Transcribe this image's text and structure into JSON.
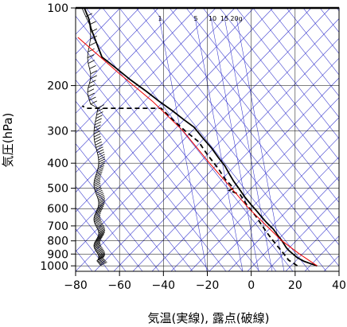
{
  "chart_data": {
    "type": "line",
    "title": "",
    "xlabel": "気温(実線), 露点(破線)",
    "ylabel": "気圧(hPa)",
    "x_ticks": [
      -80,
      -60,
      -40,
      -20,
      0,
      20,
      40
    ],
    "x_tick_labels": [
      "−80",
      "−60",
      "−40",
      "−20",
      "0",
      "20",
      "40"
    ],
    "xlim": [
      -80,
      40
    ],
    "y_ticks": [
      100,
      200,
      300,
      400,
      500,
      600,
      700,
      800,
      900,
      1000
    ],
    "y_tick_labels": [
      "100",
      "200",
      "300",
      "400",
      "500",
      "600",
      "700",
      "800",
      "900",
      "1000"
    ],
    "ylim": [
      1050,
      100
    ],
    "y_scale": "log",
    "mixing_ratio_labels": [
      "1",
      "5",
      "10",
      "15",
      "20g"
    ],
    "colors": {
      "temperature": "#000000",
      "dewpoint": "#000000",
      "reference": "#ee0000",
      "background_lines": "#3030cc",
      "grid": "#000000"
    },
    "series": [
      {
        "role": "temperature",
        "style": "solid",
        "points": [
          [
            30,
            1000
          ],
          [
            27,
            980
          ],
          [
            24,
            960
          ],
          [
            21,
            930
          ],
          [
            19,
            900
          ],
          [
            17,
            870
          ],
          [
            16,
            850
          ],
          [
            14,
            800
          ],
          [
            12,
            760
          ],
          [
            10,
            720
          ],
          [
            7,
            680
          ],
          [
            5,
            650
          ],
          [
            3,
            620
          ],
          [
            0,
            580
          ],
          [
            -3,
            540
          ],
          [
            -5,
            510
          ],
          [
            -8,
            470
          ],
          [
            -10,
            440
          ],
          [
            -12,
            410
          ],
          [
            -15,
            380
          ],
          [
            -18,
            350
          ],
          [
            -22,
            320
          ],
          [
            -26,
            290
          ],
          [
            -31,
            270
          ],
          [
            -36,
            250
          ],
          [
            -42,
            230
          ],
          [
            -48,
            210
          ],
          [
            -55,
            190
          ],
          [
            -62,
            170
          ],
          [
            -68,
            155
          ],
          [
            -70,
            140
          ],
          [
            -73,
            120
          ],
          [
            -74,
            110
          ],
          [
            -76,
            100
          ]
        ]
      },
      {
        "role": "dewpoint",
        "style": "dashed",
        "points": [
          [
            21,
            1000
          ],
          [
            17,
            950
          ],
          [
            14,
            880
          ],
          [
            11,
            820
          ],
          [
            8,
            760
          ],
          [
            5,
            700
          ],
          [
            2,
            640
          ],
          [
            -2,
            580
          ],
          [
            -5,
            530
          ],
          [
            -10,
            510
          ],
          [
            -8,
            500
          ],
          [
            -12,
            460
          ],
          [
            -15,
            420
          ],
          [
            -20,
            370
          ],
          [
            -24,
            330
          ],
          [
            -30,
            300
          ],
          [
            -36,
            270
          ],
          [
            -41,
            245
          ],
          [
            -60,
            245
          ],
          [
            -75,
            245
          ],
          [
            -77,
            240
          ]
        ]
      },
      {
        "role": "reference",
        "style": "solid",
        "points": [
          [
            30,
            1000
          ],
          [
            22,
            900
          ],
          [
            14,
            800
          ],
          [
            7,
            700
          ],
          [
            -1,
            600
          ],
          [
            -9,
            500
          ],
          [
            -19,
            400
          ],
          [
            -31,
            300
          ],
          [
            -45,
            230
          ],
          [
            -60,
            180
          ],
          [
            -79,
            130
          ]
        ]
      }
    ]
  }
}
